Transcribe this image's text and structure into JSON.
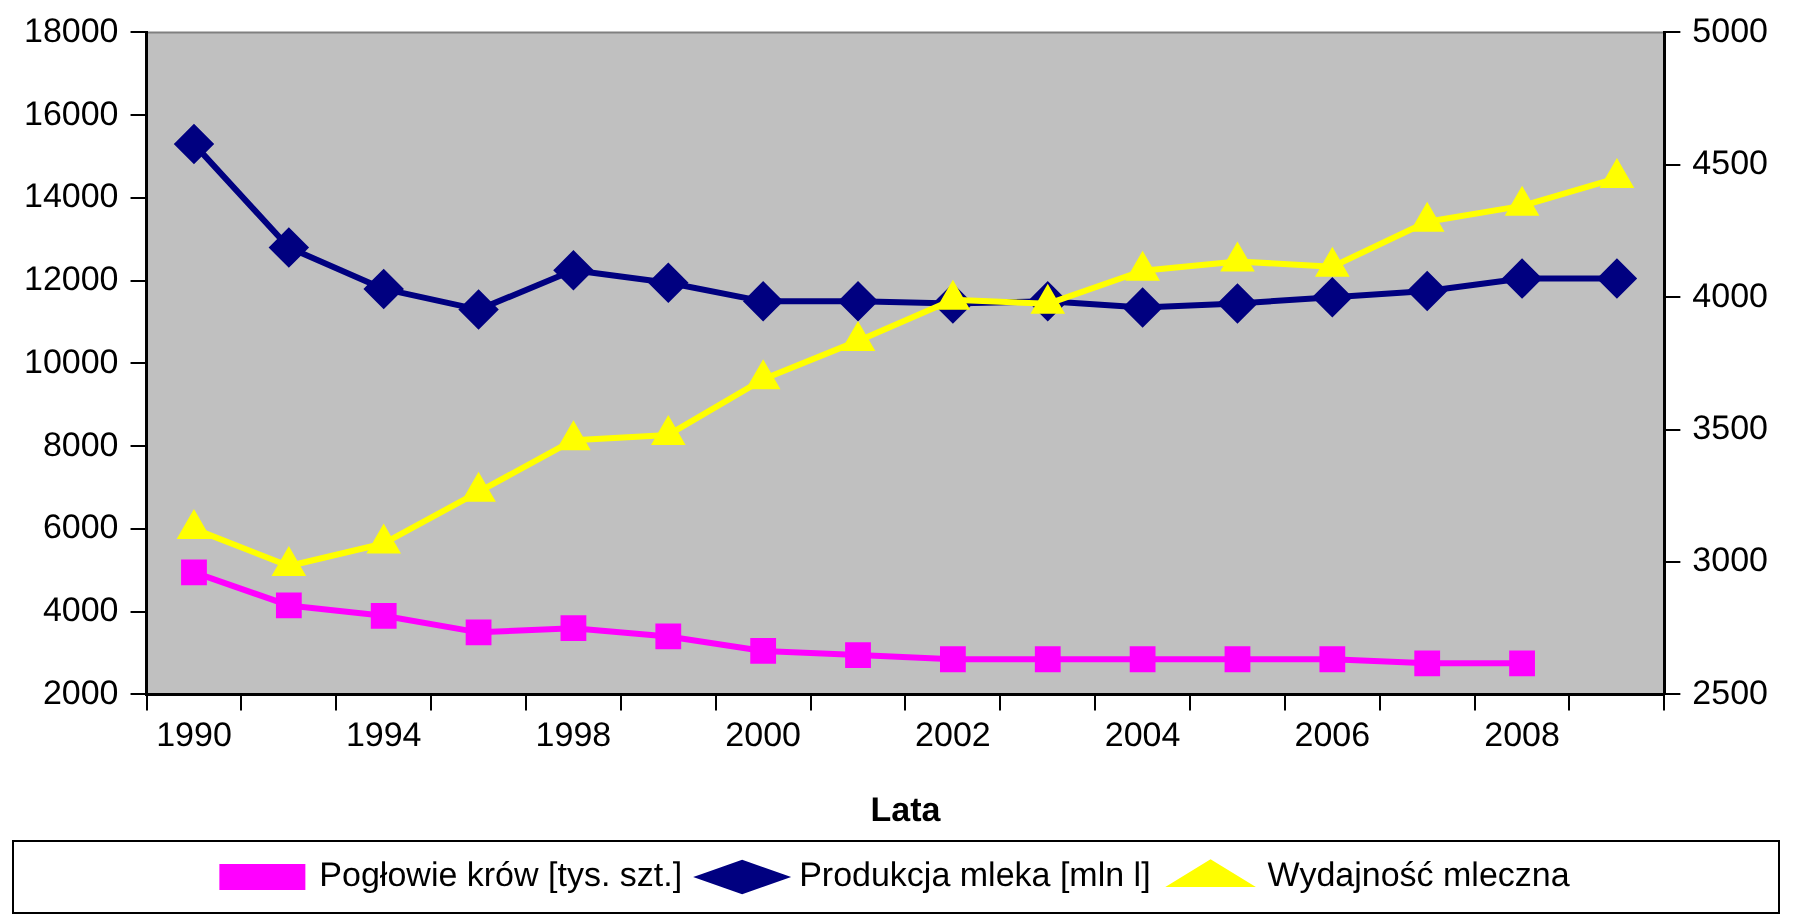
{
  "chart_data": {
    "type": "line",
    "xlabel": "Lata",
    "legend": "bottom",
    "grid": false,
    "line_style": "solid",
    "categories": [
      "1990",
      null,
      "1994",
      null,
      "1998",
      null,
      "2000",
      null,
      "2002",
      null,
      "2004",
      null,
      "2006",
      null,
      "2008",
      null
    ],
    "ylim": [
      2000,
      18000
    ],
    "yticks": [
      2000,
      4000,
      6000,
      8000,
      10000,
      12000,
      14000,
      16000,
      18000
    ],
    "y2lim": [
      2500,
      5000
    ],
    "y2ticks": [
      2500,
      3000,
      3500,
      4000,
      4500,
      5000
    ],
    "series": [
      {
        "name": "Pogłowie krów [tys. szt.]",
        "color": "#ff00ff",
        "marker": "square",
        "values": [
          4950,
          4150,
          3900,
          3500,
          3600,
          3400,
          3050,
          2950,
          2850,
          2850,
          2850,
          2850,
          2850,
          2750,
          2750,
          null
        ]
      },
      {
        "name": "Produkcja mleka [mln l]",
        "color": "#000080",
        "marker": "diamond",
        "values": [
          15300,
          12800,
          11800,
          11300,
          12250,
          11950,
          11500,
          11500,
          11450,
          11500,
          11350,
          11450,
          11600,
          11750,
          12050,
          12050
        ]
      },
      {
        "name": "Wydajność mleczna",
        "color": "#ffff00",
        "marker": "triangle",
        "axis": "y2",
        "values": [
          3125,
          2985,
          3070,
          3265,
          3460,
          3480,
          3690,
          3835,
          3990,
          3975,
          4100,
          4135,
          4115,
          4285,
          4345,
          4450
        ]
      }
    ]
  }
}
